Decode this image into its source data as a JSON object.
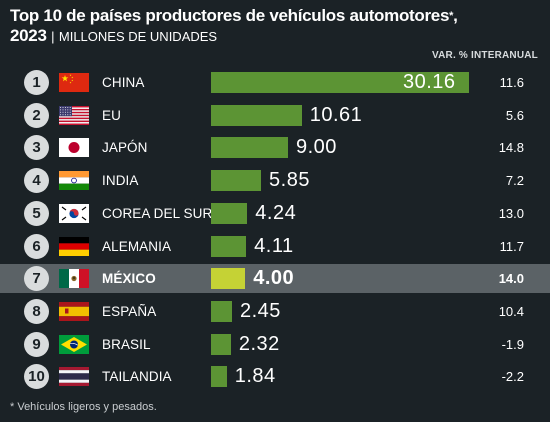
{
  "header": {
    "title": "Top 10 de países productores de vehículos automotores",
    "title_mark": "*",
    "title_sep": ",",
    "year": "2023",
    "subtitle_sep": "|",
    "subtitle": "MILLONES DE UNIDADES",
    "var_header": "VAR. % INTERANUAL"
  },
  "footnote": "* Vehículos ligeros y pesados.",
  "colors": {
    "bar": "#5c9434",
    "bar_highlight": "#c5d235",
    "background": "#1b2226",
    "highlight_row": "#5b6266"
  },
  "chart_data": {
    "type": "bar",
    "orientation": "horizontal",
    "title": "Top 10 de países productores de vehículos automotores*, 2023",
    "subtitle": "MILLONES DE UNIDADES",
    "categories": [
      "CHINA",
      "EU",
      "JAPÓN",
      "INDIA",
      "COREA DEL SUR",
      "ALEMANIA",
      "MÉXICO",
      "ESPAÑA",
      "BRASIL",
      "TAILANDIA"
    ],
    "ranks": [
      "1",
      "2",
      "3",
      "4",
      "5",
      "6",
      "7",
      "8",
      "9",
      "10"
    ],
    "values": [
      30.16,
      10.61,
      9.0,
      5.85,
      4.24,
      4.11,
      4.0,
      2.45,
      2.32,
      1.84
    ],
    "value_labels": [
      "30.16",
      "10.61",
      "9.00",
      "5.85",
      "4.24",
      "4.11",
      "4.00",
      "2.45",
      "2.32",
      "1.84"
    ],
    "var_label": "VAR. % INTERANUAL",
    "var_pct": [
      "11.6",
      "5.6",
      "14.8",
      "7.2",
      "13.0",
      "11.7",
      "14.0",
      "10.4",
      "-1.9",
      "-2.2"
    ],
    "flags": [
      "china-flag-icon",
      "usa-flag-icon",
      "japan-flag-icon",
      "india-flag-icon",
      "south-korea-flag-icon",
      "germany-flag-icon",
      "mexico-flag-icon",
      "spain-flag-icon",
      "brazil-flag-icon",
      "thailand-flag-icon"
    ],
    "highlight": "MÉXICO",
    "xlim": [
      0,
      30.16
    ],
    "grid": false,
    "legend": "none"
  }
}
